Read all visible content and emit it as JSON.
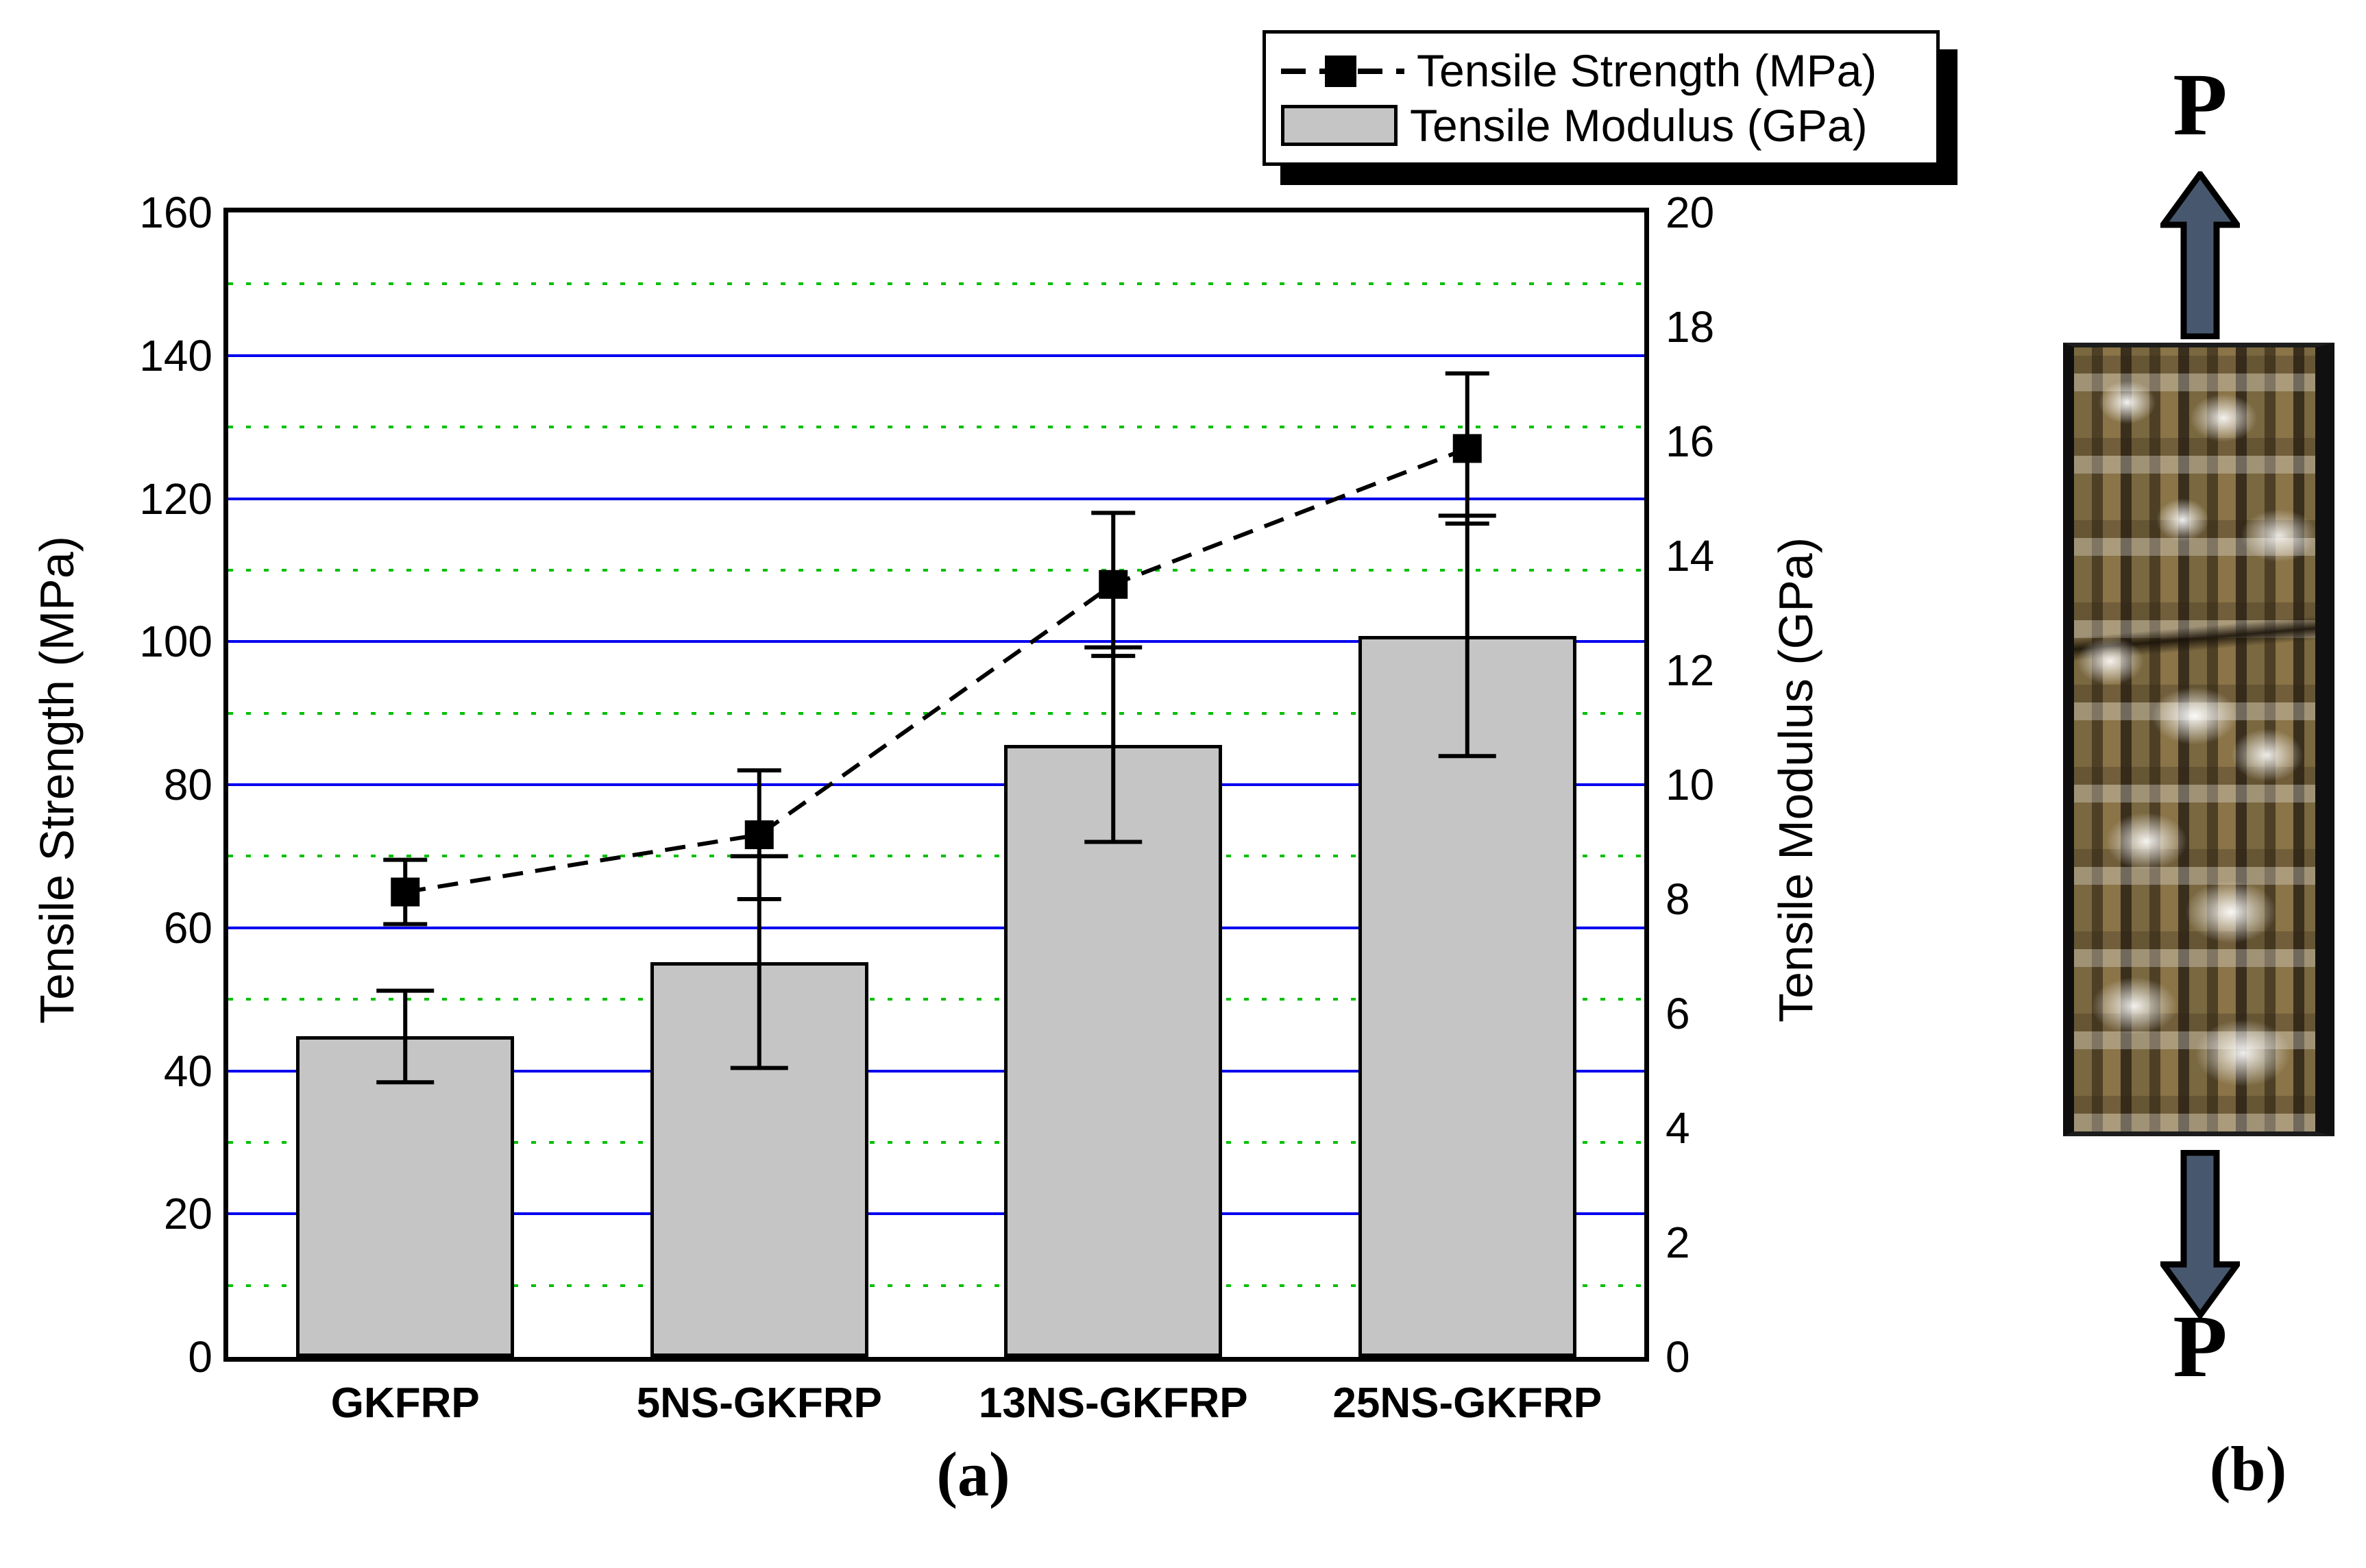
{
  "figure": {
    "caption_a": "(a)",
    "caption_b": "(b)",
    "load_label_top": "P",
    "load_label_bottom": "P"
  },
  "legend": {
    "items": [
      {
        "label": "Tensile Strength (MPa)",
        "marker": "dashed-line-square-marker"
      },
      {
        "label": "Tensile Modulus (GPa)",
        "marker": "gray-bar-swatch"
      }
    ]
  },
  "chart_data": {
    "type": "bar",
    "subtype": "bar-and-line-dual-axis",
    "categories": [
      "GKFRP",
      "5NS-GKFRP",
      "13NS-GKFRP",
      "25NS-GKFRP"
    ],
    "series": [
      {
        "name": "Tensile Strength (MPa)",
        "type": "line",
        "axis": "left",
        "marker": "black-square",
        "line_style": "dashed",
        "values": [
          65,
          73,
          108,
          127
        ],
        "error": [
          4.5,
          9,
          10,
          10.5
        ]
      },
      {
        "name": "Tensile Modulus (GPa)",
        "type": "bar",
        "axis": "right",
        "values": [
          5.6,
          6.9,
          10.7,
          12.6
        ],
        "error": [
          0.8,
          1.85,
          1.7,
          2.1
        ]
      }
    ],
    "left_axis": {
      "title": "Tensile Strength (MPa)",
      "min": 0,
      "max": 160,
      "step": 20,
      "ticks": [
        0,
        20,
        40,
        60,
        80,
        100,
        120,
        140,
        160
      ]
    },
    "right_axis": {
      "title": "Tensile Modulus (GPa)",
      "min": 0,
      "max": 20,
      "step": 2,
      "ticks": [
        0,
        2,
        4,
        6,
        8,
        10,
        12,
        14,
        16,
        18,
        20
      ]
    },
    "grid": {
      "major": "solid-blue-every-20MPa",
      "minor": "dotted-green-every-10MPa",
      "legend_position": "top-right"
    }
  },
  "colors": {
    "grid_major_blue": "#0000ee",
    "grid_minor_green": "#00c000",
    "bar_fill": "#c5c5c5",
    "bar_border": "#000000",
    "line_color": "#000000",
    "arrow_fill": "#47586e",
    "text": "#000000"
  }
}
